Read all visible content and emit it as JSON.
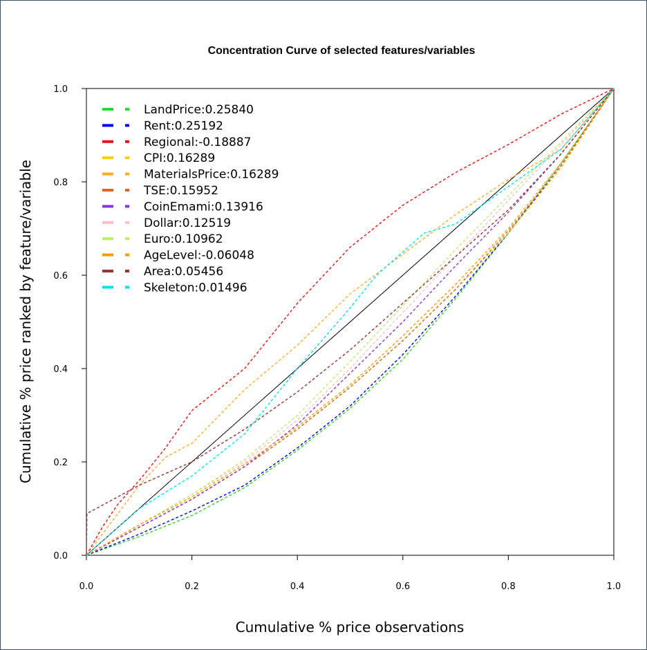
{
  "chart_data": {
    "type": "line",
    "title": "Concentration Curve of selected features/variables",
    "xlabel": "Cumulative % price observations",
    "ylabel": "Cumulative % price ranked by feature/variable",
    "xlim": [
      0,
      1
    ],
    "ylim": [
      0,
      1
    ],
    "xticks": [
      "0.0",
      "0.2",
      "0.4",
      "0.6",
      "0.8",
      "1.0"
    ],
    "yticks": [
      "0.0",
      "0.2",
      "0.4",
      "0.6",
      "0.8",
      "1.0"
    ],
    "grid": false,
    "legend_position": "top-left",
    "reference_line": {
      "x": [
        0,
        1
      ],
      "y": [
        0,
        1
      ],
      "color": "#000000"
    },
    "series": [
      {
        "name": "LandPrice:0.25840",
        "color": "#22dd22",
        "x": [
          0,
          0.1,
          0.2,
          0.3,
          0.4,
          0.5,
          0.6,
          0.7,
          0.8,
          0.9,
          1
        ],
        "y": [
          0,
          0.04,
          0.085,
          0.145,
          0.225,
          0.315,
          0.42,
          0.55,
          0.69,
          0.84,
          1
        ]
      },
      {
        "name": "Rent:0.25192",
        "color": "#0000ee",
        "x": [
          0,
          0.1,
          0.2,
          0.3,
          0.4,
          0.5,
          0.6,
          0.7,
          0.8,
          0.9,
          1
        ],
        "y": [
          0,
          0.045,
          0.095,
          0.15,
          0.23,
          0.32,
          0.43,
          0.555,
          0.69,
          0.835,
          1
        ]
      },
      {
        "name": "Regional:-0.18887",
        "color": "#ee1111",
        "x": [
          0,
          0.03,
          0.06,
          0.1,
          0.15,
          0.2,
          0.3,
          0.4,
          0.5,
          0.6,
          0.7,
          0.8,
          0.9,
          1
        ],
        "y": [
          0,
          0.06,
          0.11,
          0.16,
          0.23,
          0.31,
          0.4,
          0.54,
          0.66,
          0.75,
          0.82,
          0.88,
          0.945,
          1
        ]
      },
      {
        "name": "CPI:0.16289",
        "color": "#ffcc00",
        "x": [
          0,
          0.1,
          0.2,
          0.3,
          0.4,
          0.5,
          0.6,
          0.7,
          0.8,
          0.9,
          1
        ],
        "y": [
          0,
          0.06,
          0.12,
          0.19,
          0.27,
          0.36,
          0.46,
          0.57,
          0.69,
          0.83,
          1
        ]
      },
      {
        "name": "MaterialsPrice:0.16289",
        "color": "#ffaa22",
        "x": [
          0,
          0.1,
          0.15,
          0.2,
          0.3,
          0.4,
          0.5,
          0.6,
          0.7,
          0.8,
          0.9,
          1
        ],
        "y": [
          0,
          0.15,
          0.21,
          0.24,
          0.355,
          0.45,
          0.56,
          0.645,
          0.73,
          0.805,
          0.87,
          1
        ]
      },
      {
        "name": "TSE:0.15952",
        "color": "#dd6622",
        "x": [
          0,
          0.1,
          0.2,
          0.3,
          0.4,
          0.5,
          0.6,
          0.7,
          0.8,
          0.9,
          1
        ],
        "y": [
          0,
          0.06,
          0.12,
          0.19,
          0.27,
          0.36,
          0.46,
          0.57,
          0.695,
          0.835,
          1
        ]
      },
      {
        "name": "CoinEmami:0.13916",
        "color": "#8833dd",
        "x": [
          0,
          0.1,
          0.2,
          0.3,
          0.4,
          0.5,
          0.6,
          0.7,
          0.8,
          0.9,
          1
        ],
        "y": [
          0,
          0.06,
          0.12,
          0.19,
          0.28,
          0.39,
          0.5,
          0.62,
          0.735,
          0.86,
          1
        ]
      },
      {
        "name": "Dollar:0.12519",
        "color": "#ffbbcc",
        "x": [
          0,
          0.1,
          0.2,
          0.3,
          0.4,
          0.5,
          0.6,
          0.7,
          0.8,
          0.9,
          1
        ],
        "y": [
          0,
          0.065,
          0.13,
          0.2,
          0.29,
          0.4,
          0.52,
          0.64,
          0.76,
          0.88,
          1
        ]
      },
      {
        "name": "Euro:0.10962",
        "color": "#bbee66",
        "x": [
          0,
          0.1,
          0.2,
          0.3,
          0.4,
          0.5,
          0.6,
          0.7,
          0.8,
          0.9,
          1
        ],
        "y": [
          0,
          0.065,
          0.13,
          0.205,
          0.3,
          0.415,
          0.535,
          0.655,
          0.77,
          0.885,
          1
        ]
      },
      {
        "name": "AgeLevel:-0.06048",
        "color": "#ff9900",
        "x": [
          0,
          0.1,
          0.2,
          0.3,
          0.4,
          0.5,
          0.6,
          0.7,
          0.8,
          0.9,
          1
        ],
        "y": [
          0,
          0.065,
          0.125,
          0.195,
          0.275,
          0.365,
          0.47,
          0.58,
          0.7,
          0.84,
          1
        ]
      },
      {
        "name": "Area:0.05456",
        "color": "#993333",
        "x": [
          0,
          0.001,
          0.002,
          0.1,
          0.2,
          0.3,
          0.4,
          0.5,
          0.6,
          0.7,
          0.8,
          0.9,
          1
        ],
        "y": [
          0,
          0.09,
          0.09,
          0.15,
          0.2,
          0.27,
          0.35,
          0.44,
          0.54,
          0.64,
          0.74,
          0.86,
          1
        ]
      },
      {
        "name": "Skeleton:0.01496",
        "color": "#00e5ee",
        "x": [
          0,
          0.1,
          0.2,
          0.3,
          0.4,
          0.5,
          0.55,
          0.6,
          0.64,
          0.7,
          0.8,
          0.9,
          1
        ],
        "y": [
          0,
          0.1,
          0.17,
          0.26,
          0.4,
          0.53,
          0.6,
          0.65,
          0.69,
          0.71,
          0.79,
          0.87,
          1
        ]
      }
    ]
  }
}
